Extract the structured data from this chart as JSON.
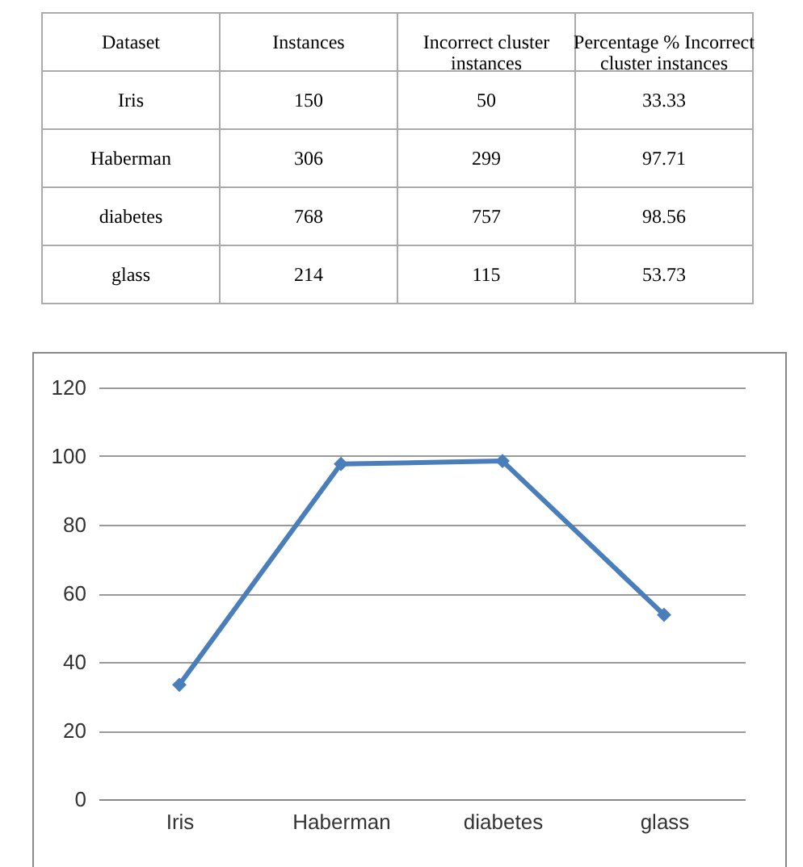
{
  "chart_data": [
    {
      "type": "other",
      "data_labels": true,
      "legend_title": "Dataset",
      "categories": [
        "Iris",
        "Haberman",
        "diabetes",
        "glass"
      ],
      "series": [
        {
          "name": "Instances",
          "values": [
            150,
            306,
            768,
            214
          ]
        },
        {
          "name": "Incorrect cluster instances",
          "values": [
            50,
            299,
            757,
            115
          ]
        },
        {
          "name": "Percentage % Incorrect cluster instances",
          "values": [
            33.33,
            97.71,
            98.56,
            53.73
          ]
        }
      ]
    },
    {
      "type": "line",
      "categories": [
        "Iris",
        "Haberman",
        "diabetes",
        "glass"
      ],
      "series": [
        {
          "color": "#4a7ebb",
          "values": [
            33.33,
            97.71,
            98.56,
            53.73
          ]
        }
      ],
      "ylim": [
        0,
        120
      ],
      "yticks": [
        0,
        20,
        40,
        60,
        80,
        100,
        120
      ],
      "grid": "y",
      "marker": "diamond",
      "line_style": "solid"
    }
  ]
}
